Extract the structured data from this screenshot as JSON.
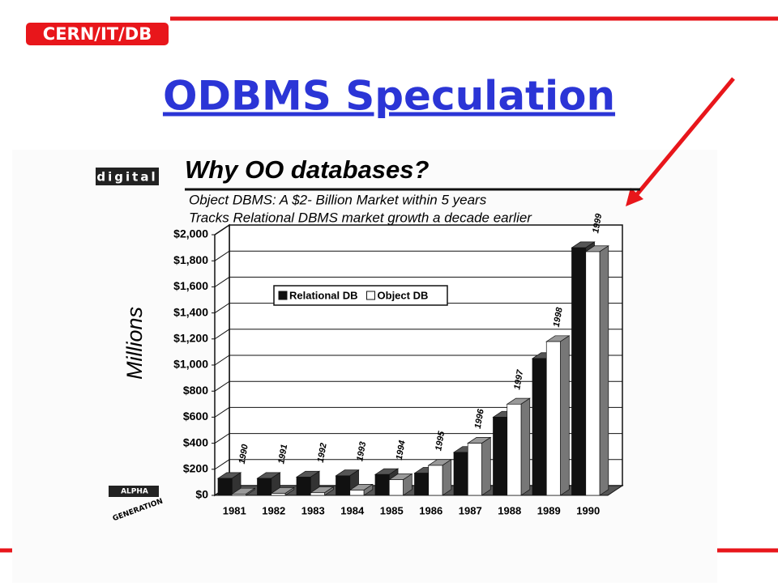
{
  "slide": {
    "badge": "CERN/IT/DB",
    "title": "ODBMS Speculation"
  },
  "chart_data": {
    "type": "bar3d",
    "title": "Why OO databases?",
    "subtitle": [
      "Object DBMS: A $2- Billion Market within 5 years",
      "Tracks Relational DBMS market growth a decade earlier"
    ],
    "y_label": "Millions",
    "logo": "digital",
    "footer_logo": [
      "ALPHA",
      "GENERATION"
    ],
    "categories": [
      "1981",
      "1982",
      "1983",
      "1984",
      "1985",
      "1986",
      "1987",
      "1988",
      "1989",
      "1990"
    ],
    "annotations": [
      "1990",
      "1991",
      "1992",
      "1993",
      "1994",
      "1995",
      "1996",
      "1997",
      "1998",
      "1999"
    ],
    "series": [
      {
        "name": "Relational DB",
        "color": "#111111",
        "values": [
          130,
          130,
          140,
          150,
          160,
          170,
          330,
          600,
          1050,
          1900
        ]
      },
      {
        "name": "Object DB",
        "color": "#ffffff",
        "values": [
          10,
          15,
          20,
          40,
          120,
          230,
          400,
          700,
          1180,
          1870
        ]
      }
    ],
    "ylim": [
      0,
      2000
    ],
    "yticks": [
      {
        "value": 0,
        "label": "$0"
      },
      {
        "value": 200,
        "label": "$200"
      },
      {
        "value": 400,
        "label": "$400"
      },
      {
        "value": 600,
        "label": "$600"
      },
      {
        "value": 800,
        "label": "$800"
      },
      {
        "value": 1000,
        "label": "$1,000"
      },
      {
        "value": 1200,
        "label": "$1,200"
      },
      {
        "value": 1400,
        "label": "$1,400"
      },
      {
        "value": 1600,
        "label": "$1,600"
      },
      {
        "value": 1800,
        "label": "$1,800"
      },
      {
        "value": 2000,
        "label": "$2,000"
      }
    ],
    "grid": true
  }
}
